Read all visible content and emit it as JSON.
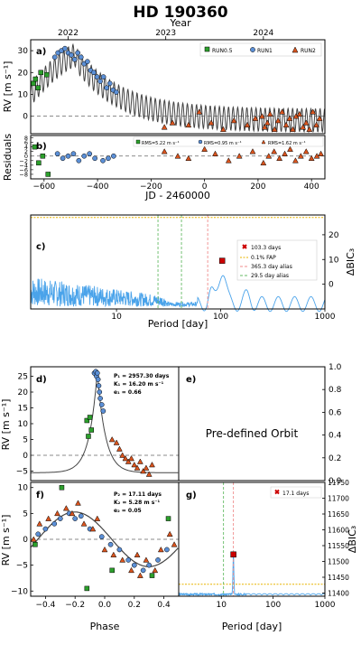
{
  "figure": {
    "title": "HD 190360",
    "colors": {
      "run05": "#2ca02c",
      "run1": "#5b8fd6",
      "run2": "#d9541e",
      "model": "#444444",
      "periodogram": "#4aa3ea",
      "fap": "#e8b400",
      "alias365": "#f08c8c",
      "alias29": "#66bb66"
    }
  },
  "chart_data": [
    {
      "panel": "a",
      "type": "scatter",
      "top_axis_label": "Year",
      "top_ticks": [
        "2022",
        "2023",
        "2024"
      ],
      "ylabel": "RV [m s⁻¹]",
      "ylim": [
        -8,
        35
      ],
      "xlim": [
        -650,
        450
      ],
      "yticks": [
        "0",
        "10",
        "20",
        "30"
      ],
      "legend": [
        "RUN0.5",
        "RUN1",
        "RUN2"
      ],
      "series": [
        {
          "name": "RUN0.5",
          "marker": "square",
          "color": "run05",
          "x": [
            -640,
            -632,
            -622,
            -612,
            -590
          ],
          "y": [
            15,
            17,
            13,
            20,
            19
          ]
        },
        {
          "name": "RUN1",
          "marker": "circle",
          "color": "run1",
          "x": [
            -560,
            -548,
            -535,
            -522,
            -510,
            -498,
            -486,
            -474,
            -462,
            -450,
            -438,
            -426,
            -414,
            -402,
            -390,
            -378,
            -366,
            -354,
            -342,
            -330
          ],
          "y": [
            27,
            29,
            30,
            31,
            29,
            28,
            26,
            29,
            27,
            24,
            25,
            21,
            20,
            18,
            16,
            18,
            13,
            15,
            12,
            11
          ]
        },
        {
          "name": "RUN2",
          "marker": "triangle",
          "color": "run2",
          "x": [
            -150,
            -120,
            -60,
            -20,
            25,
            70,
            110,
            160,
            190,
            215,
            225,
            235,
            245,
            262,
            275,
            290,
            305,
            318,
            330,
            342,
            355,
            368,
            380,
            392,
            405,
            418,
            430
          ],
          "y": [
            -5,
            -3,
            -4,
            2,
            -3,
            -6,
            -2,
            -4,
            -1,
            0,
            -5,
            -3,
            1,
            -6,
            -2,
            2,
            -4,
            -1,
            -6,
            0,
            1,
            -5,
            -3,
            -6,
            2,
            -4,
            -1
          ]
        }
      ]
    },
    {
      "panel": "b",
      "type": "scatter",
      "ylabel": "Residuals",
      "xlabel": "JD - 2460000",
      "ylim": [
        -10,
        9
      ],
      "xlim": [
        -650,
        450
      ],
      "yticks": [
        "−8",
        "−6",
        "−4",
        "−2",
        "0",
        "2",
        "4",
        "6",
        "8"
      ],
      "xticks": [
        "−600",
        "−400",
        "−200",
        "0",
        "200",
        "400"
      ],
      "legend": [
        "RMS=5.22 m s⁻¹",
        "RMS=0.95 m s⁻¹",
        "RMS=1.62 m s⁻¹"
      ],
      "series": [
        {
          "name": "RUN0.5",
          "marker": "square",
          "color": "run05",
          "x": [
            -635,
            -620,
            -605,
            -585
          ],
          "y": [
            4,
            -3,
            0,
            -8
          ]
        },
        {
          "name": "RUN1",
          "marker": "circle",
          "color": "run1",
          "x": [
            -550,
            -530,
            -510,
            -490,
            -470,
            -450,
            -430,
            -410,
            -380,
            -360,
            -340
          ],
          "y": [
            1,
            -1,
            0,
            1,
            -2,
            0,
            1,
            -1,
            -2,
            -1,
            0
          ]
        },
        {
          "name": "RUN2",
          "marker": "triangle",
          "color": "run2",
          "x": [
            -150,
            -100,
            -60,
            0,
            40,
            90,
            130,
            180,
            220,
            240,
            260,
            280,
            300,
            320,
            340,
            360,
            380,
            400,
            420,
            435
          ],
          "y": [
            2,
            0,
            -1,
            3,
            1,
            -2,
            0,
            2,
            -3,
            0,
            2,
            -1,
            1,
            3,
            -2,
            0,
            2,
            -1,
            0,
            1
          ]
        }
      ]
    },
    {
      "panel": "c",
      "type": "line",
      "xlabel": "Period [day]",
      "ylabel": "ΔBIC₃",
      "xscale": "log",
      "xlim": [
        1.5,
        1000
      ],
      "ylim": [
        -10,
        28
      ],
      "xticks": [
        "10",
        "100",
        "1000"
      ],
      "yticks": [
        "0",
        "10",
        "20"
      ],
      "peak": {
        "period": 103.3,
        "value": 9.5,
        "label": "103.3 days"
      },
      "fap_level": 27,
      "aliases": [
        {
          "period": 29.5,
          "label": "29.5 day alias"
        },
        {
          "period": 365.3,
          "label": "365.3 day alias"
        }
      ],
      "legend": [
        "103.3 days",
        "0.1% FAP",
        "365.3 day alias",
        "29.5 day alias"
      ],
      "alias_lines_x": [
        25.0,
        42.0,
        75.0
      ],
      "curve": [
        [
          1.5,
          -8
        ],
        [
          2,
          -5
        ],
        [
          3,
          -6
        ],
        [
          5,
          -4
        ],
        [
          8,
          -7
        ],
        [
          10,
          -5
        ],
        [
          15,
          -6
        ],
        [
          20,
          -3
        ],
        [
          25,
          -7
        ],
        [
          30,
          -4
        ],
        [
          40,
          -6
        ],
        [
          50,
          -3
        ],
        [
          60,
          -5
        ],
        [
          70,
          0
        ],
        [
          80,
          2
        ],
        [
          90,
          -4
        ],
        [
          100,
          6
        ],
        [
          110,
          9
        ],
        [
          120,
          3
        ],
        [
          140,
          -4
        ],
        [
          160,
          -6
        ],
        [
          180,
          -1
        ],
        [
          200,
          -6
        ],
        [
          250,
          -7
        ],
        [
          300,
          -3
        ],
        [
          350,
          -6
        ],
        [
          400,
          -8
        ],
        [
          500,
          -8
        ],
        [
          700,
          -6
        ],
        [
          1000,
          -7
        ]
      ]
    },
    {
      "panel": "d",
      "type": "scatter",
      "xlabel": "",
      "ylabel": "RV [m s⁻¹]",
      "xlim": [
        -0.5,
        0.5
      ],
      "ylim": [
        -8,
        28
      ],
      "yticks": [
        "−5",
        "0",
        "5",
        "10",
        "15",
        "20",
        "25"
      ],
      "params": [
        "P₁ = 2957.30 days",
        "K₁ = 16.20 m s⁻¹",
        "e₁ = 0.66"
      ]
    },
    {
      "panel": "e",
      "type": "table",
      "text": "Pre-defined Orbit",
      "yticks": [
        "0.0",
        "0.2",
        "0.4",
        "0.6",
        "0.8",
        "1.0"
      ]
    },
    {
      "panel": "f",
      "type": "scatter",
      "xlabel": "Phase",
      "ylabel": "RV [m s⁻¹]",
      "xlim": [
        -0.5,
        0.5
      ],
      "ylim": [
        -11,
        11
      ],
      "xticks": [
        "−0.4",
        "−0.2",
        "0.0",
        "0.2",
        "0.4"
      ],
      "yticks": [
        "−10",
        "−5",
        "0",
        "5",
        "10"
      ],
      "params": [
        "P₂ = 17.11 days",
        "K₂ = 5.28 m s⁻¹",
        "e₂ = 0.05"
      ]
    },
    {
      "panel": "g",
      "type": "line",
      "xlabel": "Period [day]",
      "ylabel": "ΔBIC₃",
      "xscale": "log",
      "xlim": [
        1.5,
        1000
      ],
      "ylim": [
        11390,
        11750
      ],
      "xticks": [
        "10",
        "100",
        "1000"
      ],
      "yticks": [
        "11400",
        "11450",
        "11500",
        "11550",
        "11600",
        "11650",
        "11700",
        "11750"
      ],
      "peak": {
        "period": 17.1,
        "value": 11522,
        "label": "17.1 days"
      },
      "fap_level": 11428,
      "legend": [
        "17.1 days"
      ]
    }
  ]
}
